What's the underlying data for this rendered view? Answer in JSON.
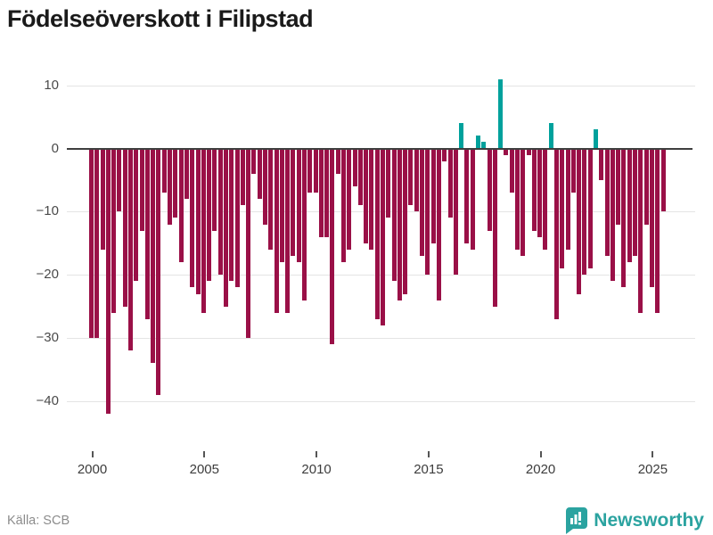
{
  "header": {
    "title": "Födelseöverskott i Filipstad"
  },
  "footer": {
    "source": "Källa: SCB",
    "brand": "Newsworthy",
    "brand_icon": "newsworthy-speech-bubble-bar-chart-icon",
    "brand_color": "#2ba3a0"
  },
  "chart_data": {
    "type": "bar",
    "title": "Födelseöverskott i Filipstad",
    "frequency": "quarterly",
    "period_start": "2000 Q1",
    "period_end": "2025 Q3",
    "xlabel": "",
    "ylabel": "",
    "x_ticks": [
      2000,
      2005,
      2010,
      2015,
      2020,
      2025
    ],
    "y_ticks": [
      10,
      0,
      -10,
      -20,
      -30,
      -40
    ],
    "ylim": [
      -47,
      12
    ],
    "grid": "horizontal",
    "legend": "none",
    "colors": {
      "positive": "#00a19c",
      "negative": "#9a1047",
      "gridline": "#e4e4e4",
      "zero_line": "#3f3f3f"
    },
    "values": [
      -30,
      -30,
      -16,
      -42,
      -26,
      -10,
      -25,
      -32,
      -21,
      -13,
      -27,
      -34,
      -39,
      -7,
      -12,
      -11,
      -18,
      -8,
      -22,
      -23,
      -26,
      -21,
      -13,
      -20,
      -25,
      -21,
      -22,
      -9,
      -30,
      -4,
      -8,
      -12,
      -16,
      -26,
      -18,
      -26,
      -17,
      -18,
      -24,
      -7,
      -7,
      -14,
      -14,
      -31,
      -4,
      -18,
      -16,
      -6,
      -9,
      -15,
      -16,
      -27,
      -28,
      -11,
      -21,
      -24,
      -23,
      -9,
      -10,
      -17,
      -20,
      -15,
      -24,
      -2,
      -11,
      -20,
      4,
      -15,
      -16,
      2,
      1,
      -13,
      -25,
      11,
      -1,
      -7,
      -16,
      -17,
      -1,
      -13,
      -14,
      -16,
      4,
      -27,
      -19,
      -16,
      -7,
      -23,
      -20,
      -19,
      3,
      -5,
      -17,
      -21,
      -12,
      -22,
      -18,
      -17,
      -26,
      -12,
      -22,
      -26,
      -10
    ]
  }
}
